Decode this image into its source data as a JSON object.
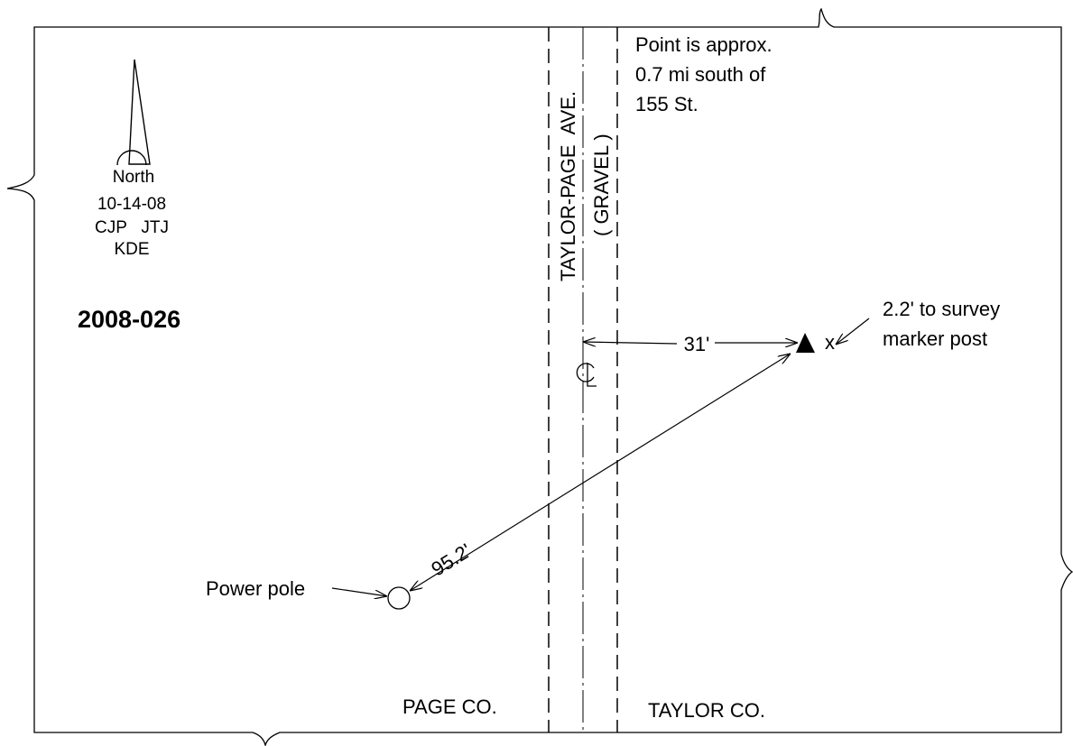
{
  "survey_id": "2008-026",
  "north_arrow": {
    "label": "North"
  },
  "date": "10-14-08",
  "crew": {
    "line1": "CJP   JTJ",
    "line2": "KDE"
  },
  "road": {
    "name": "TAYLOR-PAGE  AVE.",
    "surface": "( GRAVEL )",
    "centerline_symbol": "CL"
  },
  "location_note": {
    "line1": "Point is approx.",
    "line2": "0.7 mi south of",
    "line3": "155 St."
  },
  "offset_dimension": "31'",
  "diagonal_dimension": "95.2'",
  "marker": {
    "x_label": "x",
    "note_line1": "2.2' to survey",
    "note_line2": "marker post"
  },
  "power_pole_label": "Power pole",
  "counties": {
    "west": "PAGE CO.",
    "east": "TAYLOR CO."
  }
}
